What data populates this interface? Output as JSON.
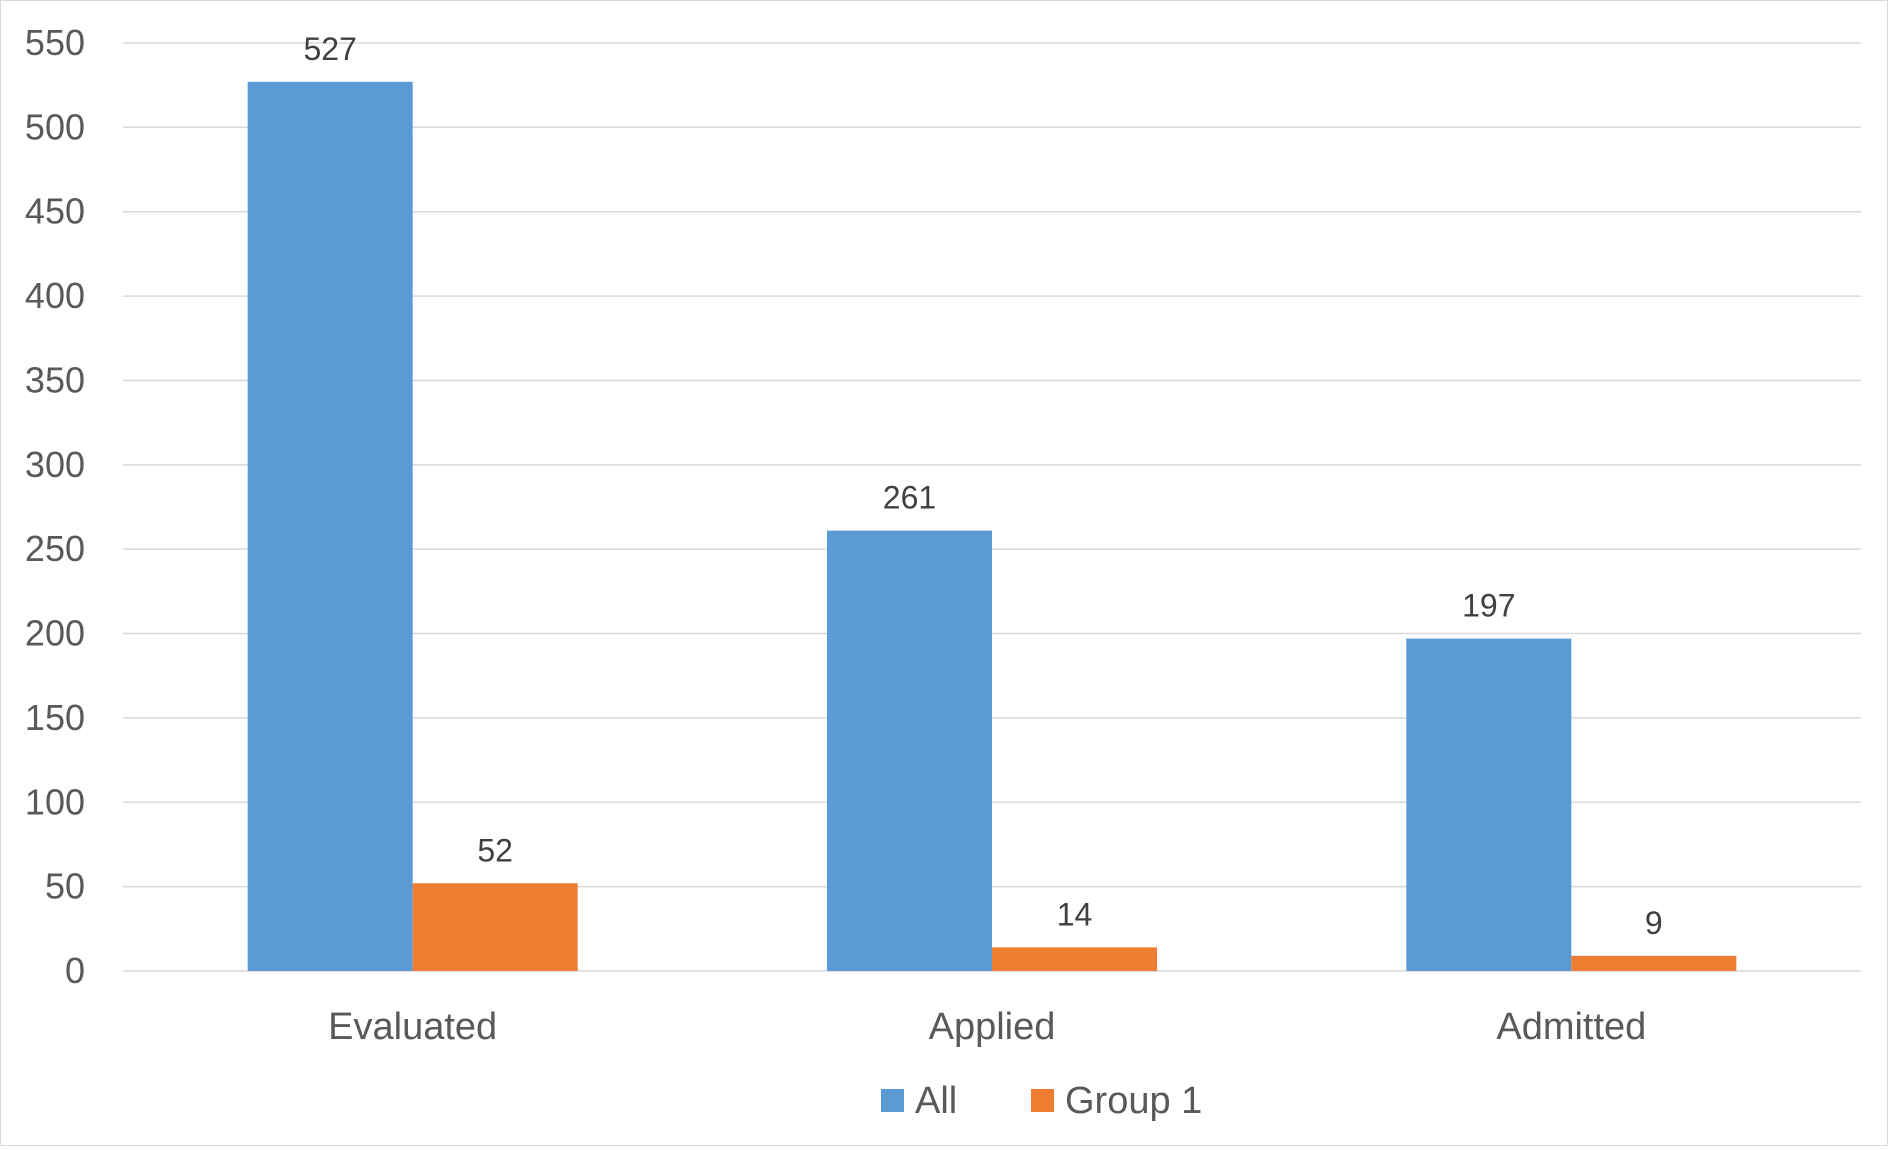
{
  "chart_data": {
    "type": "bar",
    "categories": [
      "Evaluated",
      "Applied",
      "Admitted"
    ],
    "series": [
      {
        "name": "All",
        "values": [
          527,
          261,
          197
        ],
        "color": "#5b9bd5"
      },
      {
        "name": "Group 1",
        "values": [
          52,
          14,
          9
        ],
        "color": "#ed7d31"
      }
    ],
    "ylim": [
      0,
      550
    ],
    "yticks": [
      "0",
      "50",
      "100",
      "150",
      "200",
      "250",
      "300",
      "350",
      "400",
      "450",
      "500",
      "550"
    ],
    "grid": true,
    "data_labels": true,
    "legend_position": "bottom",
    "title": "",
    "xlabel": "",
    "ylabel": ""
  }
}
